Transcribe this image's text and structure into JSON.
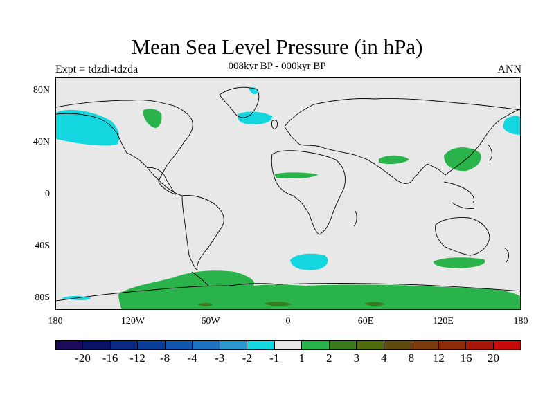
{
  "title": "Mean Sea Level Pressure (in hPa)",
  "left_subtitle": "Expt = tdzdi-tdzda",
  "center_subtitle": "008kyr BP - 000kyr BP",
  "right_subtitle": "ANN",
  "y_ticks": [
    "80N",
    "40N",
    "0",
    "40S",
    "80S"
  ],
  "x_ticks": [
    "180",
    "120W",
    "60W",
    "0",
    "60E",
    "120E",
    "180"
  ],
  "colorbar": {
    "colors": [
      "#1e0a5a",
      "#0a1466",
      "#0a2a82",
      "#0a3c9a",
      "#1055ad",
      "#1d72c2",
      "#2c96cf",
      "#13d6df",
      "#e8e8e8",
      "#2ab34a",
      "#3b7a1c",
      "#4f6a0a",
      "#5e4a0c",
      "#7a3a0c",
      "#8c2a0a",
      "#a8180a",
      "#c80a0a"
    ],
    "labels": [
      "-20",
      "-16",
      "-12",
      "-8",
      "-4",
      "-3",
      "-2",
      "-1",
      "1",
      "2",
      "3",
      "4",
      "8",
      "12",
      "16",
      "20"
    ]
  },
  "colors": {
    "ocean": "#e8e8e8",
    "positive": "#2ab34a",
    "negative": "#13d6df",
    "strong_positive": "#3b7a1c"
  }
}
